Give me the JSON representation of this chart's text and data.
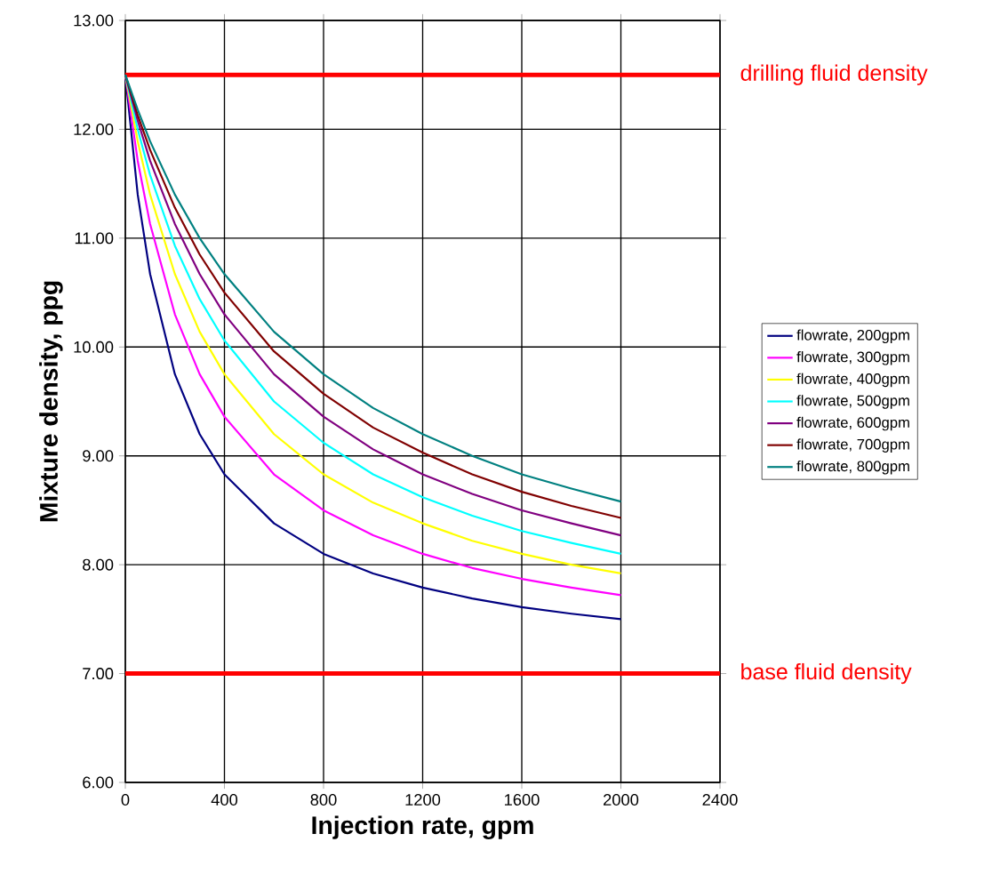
{
  "chart_data": {
    "type": "line",
    "xlabel": "Injection rate, gpm",
    "ylabel": "Mixture density, ppg",
    "xlim": [
      0,
      2400
    ],
    "ylim": [
      6,
      13
    ],
    "xticks": [
      0,
      400,
      800,
      1200,
      1600,
      2000,
      2400
    ],
    "yticks": [
      {
        "value": 6,
        "label": "6.00"
      },
      {
        "value": 7,
        "label": "7.00"
      },
      {
        "value": 8,
        "label": "8.00"
      },
      {
        "value": 9,
        "label": "9.00"
      },
      {
        "value": 10,
        "label": "10.00"
      },
      {
        "value": 11,
        "label": "11.00"
      },
      {
        "value": 12,
        "label": "12.00"
      },
      {
        "value": 13,
        "label": "13.00"
      }
    ],
    "grid": true,
    "legend": "right",
    "marker": "none",
    "line_style": "solid",
    "x": [
      0,
      50,
      100,
      200,
      300,
      400,
      600,
      800,
      1000,
      1200,
      1400,
      1600,
      1800,
      2000
    ],
    "series": [
      {
        "name": "flowrate, 200gpm",
        "color": "#000080",
        "values": [
          12.5,
          11.4,
          10.67,
          9.75,
          9.2,
          8.83,
          8.38,
          8.1,
          7.92,
          7.79,
          7.69,
          7.61,
          7.55,
          7.5
        ]
      },
      {
        "name": "flowrate, 300gpm",
        "color": "#ff00ff",
        "values": [
          12.5,
          11.71,
          11.13,
          10.3,
          9.75,
          9.36,
          8.83,
          8.5,
          8.27,
          8.1,
          7.97,
          7.87,
          7.79,
          7.72
        ]
      },
      {
        "name": "flowrate, 400gpm",
        "color": "#ffff00",
        "values": [
          12.5,
          11.89,
          11.4,
          10.67,
          10.14,
          9.75,
          9.2,
          8.83,
          8.57,
          8.38,
          8.22,
          8.1,
          8.0,
          7.92
        ]
      },
      {
        "name": "flowrate, 500gpm",
        "color": "#00ffff",
        "values": [
          12.5,
          12.0,
          11.58,
          10.93,
          10.44,
          10.06,
          9.5,
          9.12,
          8.83,
          8.62,
          8.45,
          8.31,
          8.2,
          8.1
        ]
      },
      {
        "name": "flowrate, 600gpm",
        "color": "#800080",
        "values": [
          12.5,
          12.08,
          11.71,
          11.13,
          10.67,
          10.3,
          9.75,
          9.36,
          9.06,
          8.83,
          8.65,
          8.5,
          8.38,
          8.27
        ]
      },
      {
        "name": "flowrate, 700gpm",
        "color": "#800000",
        "values": [
          12.5,
          12.13,
          11.81,
          11.28,
          10.85,
          10.5,
          9.96,
          9.57,
          9.26,
          9.03,
          8.83,
          8.67,
          8.54,
          8.43
        ]
      },
      {
        "name": "flowrate, 800gpm",
        "color": "#008080",
        "values": [
          12.5,
          12.18,
          11.89,
          11.4,
          11.0,
          10.67,
          10.14,
          9.75,
          9.44,
          9.2,
          9.0,
          8.83,
          8.7,
          8.58
        ]
      }
    ],
    "ref_lines": [
      {
        "axis": "y",
        "value": 12.5,
        "label": "drilling fluid density",
        "color": "#ff0000"
      },
      {
        "axis": "y",
        "value": 7,
        "label": "base fluid density",
        "color": "#ff0000"
      }
    ]
  }
}
